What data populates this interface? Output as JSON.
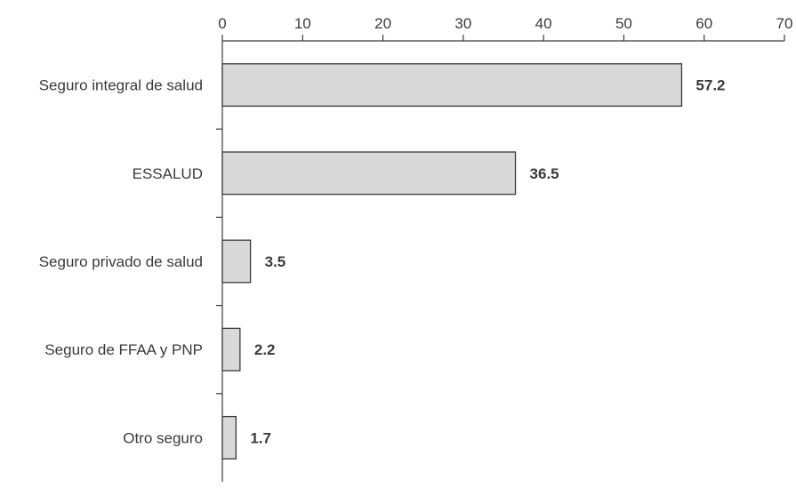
{
  "chart_data": {
    "type": "bar",
    "orientation": "horizontal",
    "categories": [
      "Seguro integral de salud",
      "ESSALUD",
      "Seguro privado de salud",
      "Seguro de FFAA y PNP",
      "Otro seguro"
    ],
    "values": [
      57.2,
      36.5,
      3.5,
      2.2,
      1.7
    ],
    "value_labels": [
      "57.2",
      "36.5",
      "3.5",
      "2.2",
      "1.7"
    ],
    "xlim": [
      0,
      70
    ],
    "xticks": [
      0,
      10,
      20,
      30,
      40,
      50,
      60,
      70
    ],
    "x_axis_position": "top",
    "grid": false,
    "legend": "none",
    "title": "",
    "xlabel": "",
    "ylabel": "",
    "colors": {
      "bar_fill": "#d9d9d9",
      "bar_stroke": "#3a3a3a",
      "axis": "#3a3a3a",
      "text": "#3a3a3a"
    }
  }
}
